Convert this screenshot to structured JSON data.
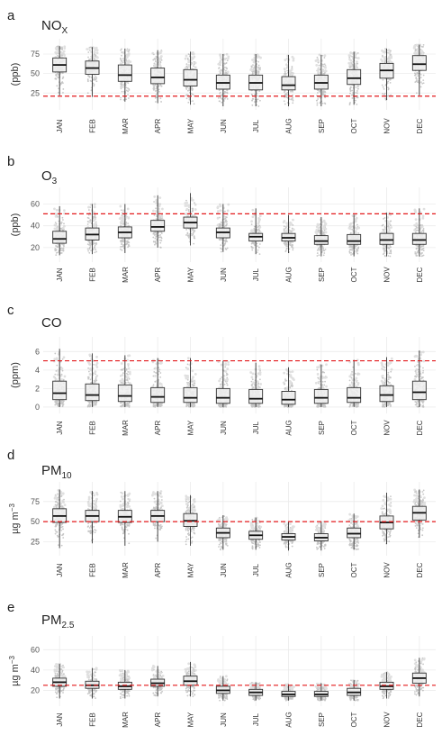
{
  "colors": {
    "threshold": "#e31a1c",
    "box_fill": "#eeeeee",
    "box_stroke": "#333333",
    "points": "#9a9a9a",
    "grid": "#ebebeb"
  },
  "chart_data": [
    {
      "type": "box",
      "panel": "a",
      "title": {
        "main": "NO",
        "sub": "X"
      },
      "ylabel": {
        "main": "(ppb)",
        "sup": ""
      },
      "ylim": [
        8,
        90
      ],
      "yticks": [
        25,
        50,
        75
      ],
      "threshold": 21,
      "categories": [
        "JAN",
        "FEB",
        "MAR",
        "APR",
        "MAY",
        "JUN",
        "JUL",
        "AUG",
        "SEP",
        "OCT",
        "NOV",
        "DEC"
      ],
      "boxes": [
        {
          "min": 22,
          "q1": 52,
          "median": 61,
          "q3": 70,
          "max": 85
        },
        {
          "min": 20,
          "q1": 49,
          "median": 57,
          "q3": 66,
          "max": 84
        },
        {
          "min": 14,
          "q1": 40,
          "median": 48,
          "q3": 61,
          "max": 82
        },
        {
          "min": 12,
          "q1": 37,
          "median": 45,
          "q3": 57,
          "max": 80
        },
        {
          "min": 10,
          "q1": 34,
          "median": 42,
          "q3": 55,
          "max": 78
        },
        {
          "min": 8,
          "q1": 30,
          "median": 38,
          "q3": 48,
          "max": 75
        },
        {
          "min": 8,
          "q1": 29,
          "median": 38,
          "q3": 48,
          "max": 75
        },
        {
          "min": 8,
          "q1": 29,
          "median": 35,
          "q3": 46,
          "max": 74
        },
        {
          "min": 8,
          "q1": 30,
          "median": 38,
          "q3": 48,
          "max": 74
        },
        {
          "min": 10,
          "q1": 36,
          "median": 44,
          "q3": 55,
          "max": 78
        },
        {
          "min": 16,
          "q1": 44,
          "median": 54,
          "q3": 63,
          "max": 82
        },
        {
          "min": 22,
          "q1": 54,
          "median": 62,
          "q3": 73,
          "max": 87
        }
      ]
    },
    {
      "type": "box",
      "panel": "b",
      "title": {
        "main": "O",
        "sub": "3"
      },
      "ylabel": {
        "main": "(ppb)",
        "sup": ""
      },
      "ylim": [
        10,
        72
      ],
      "yticks": [
        20,
        40,
        60
      ],
      "threshold": 51,
      "categories": [
        "JAN",
        "FEB",
        "MAR",
        "APR",
        "MAY",
        "JUN",
        "JUL",
        "AUG",
        "SEP",
        "OCT",
        "NOV",
        "DEC"
      ],
      "boxes": [
        {
          "min": 13,
          "q1": 24,
          "median": 28,
          "q3": 35,
          "max": 58
        },
        {
          "min": 14,
          "q1": 27,
          "median": 32,
          "q3": 38,
          "max": 60
        },
        {
          "min": 15,
          "q1": 29,
          "median": 34,
          "q3": 39,
          "max": 60
        },
        {
          "min": 20,
          "q1": 35,
          "median": 39,
          "q3": 45,
          "max": 68
        },
        {
          "min": 22,
          "q1": 38,
          "median": 43,
          "q3": 48,
          "max": 70
        },
        {
          "min": 16,
          "q1": 29,
          "median": 34,
          "q3": 38,
          "max": 60
        },
        {
          "min": 14,
          "q1": 26,
          "median": 30,
          "q3": 33,
          "max": 56
        },
        {
          "min": 15,
          "q1": 26,
          "median": 29,
          "q3": 33,
          "max": 50
        },
        {
          "min": 12,
          "q1": 23,
          "median": 26,
          "q3": 31,
          "max": 48
        },
        {
          "min": 12,
          "q1": 23,
          "median": 26,
          "q3": 32,
          "max": 50
        },
        {
          "min": 12,
          "q1": 23,
          "median": 27,
          "q3": 33,
          "max": 52
        },
        {
          "min": 12,
          "q1": 23,
          "median": 27,
          "q3": 33,
          "max": 56
        }
      ]
    },
    {
      "type": "box",
      "panel": "c",
      "title": {
        "main": "CO",
        "sub": ""
      },
      "ylabel": {
        "main": "(ppm)",
        "sup": ""
      },
      "ylim": [
        -0.3,
        7.2
      ],
      "yticks": [
        0,
        2,
        4,
        6
      ],
      "threshold": 5,
      "categories": [
        "JAN",
        "FEB",
        "MAR",
        "APR",
        "MAY",
        "JUN",
        "JUL",
        "AUG",
        "SEP",
        "OCT",
        "NOV",
        "DEC"
      ],
      "boxes": [
        {
          "min": 0,
          "q1": 0.8,
          "median": 1.5,
          "q3": 2.8,
          "max": 6.3
        },
        {
          "min": 0,
          "q1": 0.7,
          "median": 1.3,
          "q3": 2.5,
          "max": 5.8
        },
        {
          "min": 0,
          "q1": 0.6,
          "median": 1.2,
          "q3": 2.4,
          "max": 5.6
        },
        {
          "min": 0,
          "q1": 0.5,
          "median": 1.1,
          "q3": 2.1,
          "max": 5.3
        },
        {
          "min": 0,
          "q1": 0.5,
          "median": 1.0,
          "q3": 2.1,
          "max": 5.3
        },
        {
          "min": 0,
          "q1": 0.4,
          "median": 1.0,
          "q3": 2.0,
          "max": 5.0
        },
        {
          "min": 0,
          "q1": 0.4,
          "median": 0.9,
          "q3": 1.9,
          "max": 4.8
        },
        {
          "min": 0,
          "q1": 0.3,
          "median": 0.8,
          "q3": 1.7,
          "max": 4.3
        },
        {
          "min": 0,
          "q1": 0.4,
          "median": 1.0,
          "q3": 1.9,
          "max": 4.6
        },
        {
          "min": 0,
          "q1": 0.5,
          "median": 1.0,
          "q3": 2.1,
          "max": 5.1
        },
        {
          "min": 0,
          "q1": 0.6,
          "median": 1.3,
          "q3": 2.3,
          "max": 5.4
        },
        {
          "min": 0,
          "q1": 0.8,
          "median": 1.6,
          "q3": 2.8,
          "max": 6.1
        }
      ]
    },
    {
      "type": "box",
      "panel": "d",
      "title": {
        "main": "PM",
        "sub": "10"
      },
      "ylabel": {
        "main": "µg m",
        "sup": "−3"
      },
      "ylim": [
        12,
        95
      ],
      "yticks": [
        25,
        50,
        75
      ],
      "threshold": 50,
      "categories": [
        "JAN",
        "FEB",
        "MAR",
        "APR",
        "MAY",
        "JUN",
        "JUL",
        "AUG",
        "SEP",
        "OCT",
        "NOV",
        "DEC"
      ],
      "boxes": [
        {
          "min": 17,
          "q1": 49,
          "median": 57,
          "q3": 66,
          "max": 90
        },
        {
          "min": 23,
          "q1": 50,
          "median": 57,
          "q3": 64,
          "max": 88
        },
        {
          "min": 20,
          "q1": 49,
          "median": 56,
          "q3": 64,
          "max": 88
        },
        {
          "min": 25,
          "q1": 50,
          "median": 57,
          "q3": 64,
          "max": 88
        },
        {
          "min": 20,
          "q1": 44,
          "median": 51,
          "q3": 60,
          "max": 83
        },
        {
          "min": 15,
          "q1": 30,
          "median": 36,
          "q3": 42,
          "max": 58
        },
        {
          "min": 15,
          "q1": 28,
          "median": 33,
          "q3": 38,
          "max": 55
        },
        {
          "min": 14,
          "q1": 27,
          "median": 31,
          "q3": 35,
          "max": 50
        },
        {
          "min": 14,
          "q1": 26,
          "median": 30,
          "q3": 35,
          "max": 50
        },
        {
          "min": 15,
          "q1": 30,
          "median": 35,
          "q3": 42,
          "max": 60
        },
        {
          "min": 22,
          "q1": 41,
          "median": 49,
          "q3": 57,
          "max": 86
        },
        {
          "min": 30,
          "q1": 52,
          "median": 61,
          "q3": 69,
          "max": 90
        }
      ]
    },
    {
      "type": "box",
      "panel": "e",
      "title": {
        "main": "PM",
        "sub": "2.5"
      },
      "ylabel": {
        "main": "µg m",
        "sup": "−3"
      },
      "ylim": [
        8,
        70
      ],
      "yticks": [
        20,
        40,
        60
      ],
      "threshold": 25,
      "categories": [
        "JAN",
        "FEB",
        "MAR",
        "APR",
        "MAY",
        "JUN",
        "JUL",
        "AUG",
        "SEP",
        "OCT",
        "NOV",
        "DEC"
      ],
      "boxes": [
        {
          "min": 12,
          "q1": 24,
          "median": 28,
          "q3": 32,
          "max": 46
        },
        {
          "min": 12,
          "q1": 22,
          "median": 25,
          "q3": 29,
          "max": 42
        },
        {
          "min": 12,
          "q1": 21,
          "median": 24,
          "q3": 28,
          "max": 40
        },
        {
          "min": 14,
          "q1": 24,
          "median": 27,
          "q3": 31,
          "max": 44
        },
        {
          "min": 14,
          "q1": 25,
          "median": 29,
          "q3": 34,
          "max": 48
        },
        {
          "min": 10,
          "q1": 17,
          "median": 20,
          "q3": 24,
          "max": 34
        },
        {
          "min": 10,
          "q1": 15,
          "median": 18,
          "q3": 21,
          "max": 28
        },
        {
          "min": 10,
          "q1": 14,
          "median": 16,
          "q3": 19,
          "max": 26
        },
        {
          "min": 10,
          "q1": 14,
          "median": 16,
          "q3": 19,
          "max": 27
        },
        {
          "min": 10,
          "q1": 15,
          "median": 18,
          "q3": 22,
          "max": 30
        },
        {
          "min": 12,
          "q1": 21,
          "median": 24,
          "q3": 28,
          "max": 38
        },
        {
          "min": 14,
          "q1": 27,
          "median": 32,
          "q3": 37,
          "max": 52
        }
      ]
    }
  ]
}
